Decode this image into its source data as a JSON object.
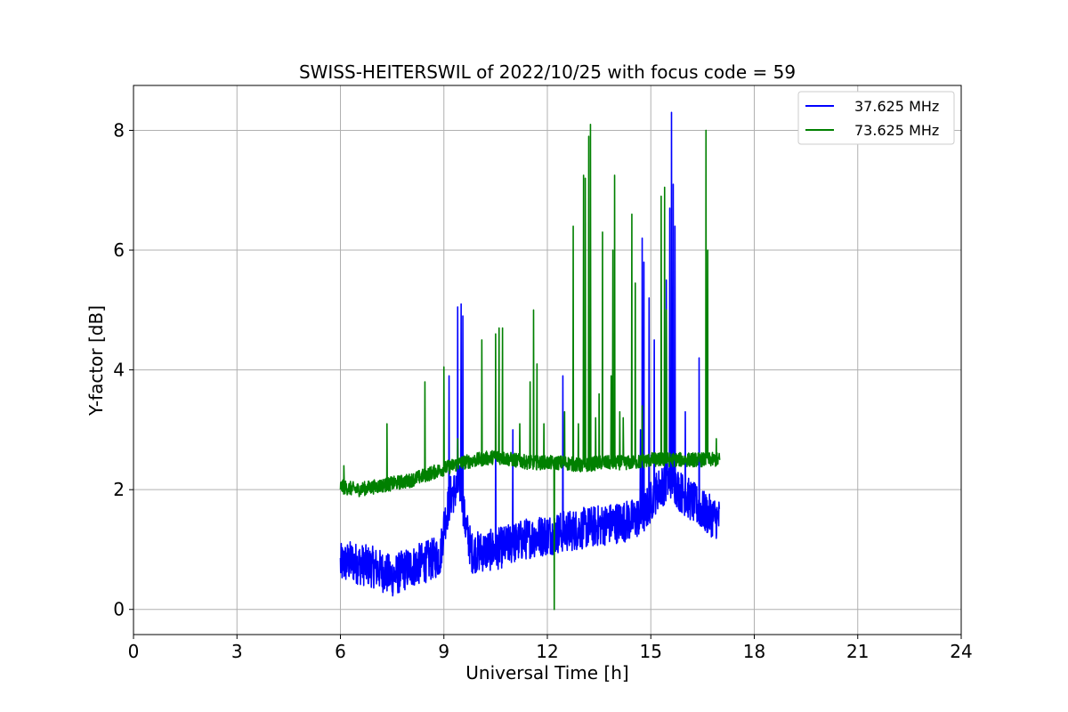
{
  "chart_data": {
    "type": "line",
    "title": "SWISS-HEITERSWIL of 2022/10/25 with focus code = 59",
    "xlabel": "Universal Time [h]",
    "ylabel": "Y-factor [dB]",
    "xlim": [
      0,
      24
    ],
    "ylim": [
      -0.42,
      8.75
    ],
    "xticks": [
      0,
      3,
      6,
      9,
      12,
      15,
      18,
      21,
      24
    ],
    "yticks": [
      0,
      2,
      4,
      6,
      8
    ],
    "grid": true,
    "legend_position": "top-right",
    "series": [
      {
        "name": "37.625 MHz",
        "color": "#0000ff",
        "baseline": [
          [
            6.0,
            0.75
          ],
          [
            6.3,
            0.8
          ],
          [
            6.6,
            0.75
          ],
          [
            7.0,
            0.7
          ],
          [
            7.5,
            0.55
          ],
          [
            8.0,
            0.7
          ],
          [
            8.5,
            0.8
          ],
          [
            8.9,
            0.9
          ],
          [
            9.0,
            1.4
          ],
          [
            9.2,
            1.9
          ],
          [
            9.5,
            2.1
          ],
          [
            9.6,
            1.5
          ],
          [
            9.8,
            0.95
          ],
          [
            10.5,
            1.0
          ],
          [
            11.0,
            1.1
          ],
          [
            11.5,
            1.2
          ],
          [
            12.0,
            1.25
          ],
          [
            12.5,
            1.3
          ],
          [
            13.0,
            1.35
          ],
          [
            13.5,
            1.4
          ],
          [
            14.0,
            1.45
          ],
          [
            14.5,
            1.5
          ],
          [
            14.8,
            1.6
          ],
          [
            15.0,
            1.8
          ],
          [
            15.2,
            2.0
          ],
          [
            15.6,
            2.2
          ],
          [
            15.8,
            2.0
          ],
          [
            16.2,
            1.8
          ],
          [
            16.6,
            1.6
          ],
          [
            17.0,
            1.5
          ]
        ],
        "spread": 0.35,
        "spikes": [
          [
            9.15,
            3.9
          ],
          [
            9.4,
            5.05
          ],
          [
            9.5,
            5.1
          ],
          [
            9.55,
            4.9
          ],
          [
            10.5,
            3.1
          ],
          [
            11.0,
            3.0
          ],
          [
            12.45,
            3.9
          ],
          [
            14.7,
            3.0
          ],
          [
            14.75,
            6.2
          ],
          [
            14.8,
            5.8
          ],
          [
            14.95,
            5.2
          ],
          [
            15.1,
            4.5
          ],
          [
            15.45,
            5.5
          ],
          [
            15.55,
            6.7
          ],
          [
            15.6,
            8.3
          ],
          [
            15.65,
            7.1
          ],
          [
            15.7,
            6.4
          ],
          [
            16.0,
            3.3
          ],
          [
            16.4,
            4.2
          ]
        ]
      },
      {
        "name": "73.625 MHz",
        "color": "#008000",
        "baseline": [
          [
            6.0,
            2.05
          ],
          [
            6.5,
            2.0
          ],
          [
            7.0,
            2.05
          ],
          [
            7.5,
            2.1
          ],
          [
            8.0,
            2.15
          ],
          [
            8.5,
            2.25
          ],
          [
            9.0,
            2.35
          ],
          [
            9.5,
            2.45
          ],
          [
            10.0,
            2.5
          ],
          [
            10.5,
            2.55
          ],
          [
            11.0,
            2.5
          ],
          [
            11.5,
            2.45
          ],
          [
            12.0,
            2.45
          ],
          [
            12.5,
            2.45
          ],
          [
            13.0,
            2.4
          ],
          [
            13.5,
            2.45
          ],
          [
            14.0,
            2.45
          ],
          [
            14.5,
            2.45
          ],
          [
            15.0,
            2.5
          ],
          [
            15.5,
            2.5
          ],
          [
            16.0,
            2.5
          ],
          [
            16.5,
            2.5
          ],
          [
            17.0,
            2.5
          ]
        ],
        "spread": 0.12,
        "spikes": [
          [
            6.1,
            2.4
          ],
          [
            7.35,
            3.1
          ],
          [
            8.45,
            3.8
          ],
          [
            9.0,
            4.05
          ],
          [
            9.4,
            2.85
          ],
          [
            10.1,
            4.5
          ],
          [
            10.5,
            4.6
          ],
          [
            10.6,
            4.7
          ],
          [
            10.7,
            4.7
          ],
          [
            11.2,
            3.1
          ],
          [
            11.5,
            3.8
          ],
          [
            11.6,
            5.0
          ],
          [
            11.7,
            4.1
          ],
          [
            11.9,
            3.1
          ],
          [
            12.2,
            0.0
          ],
          [
            12.5,
            3.3
          ],
          [
            12.75,
            6.4
          ],
          [
            12.9,
            3.1
          ],
          [
            13.05,
            7.25
          ],
          [
            13.1,
            7.2
          ],
          [
            13.2,
            7.9
          ],
          [
            13.25,
            8.1
          ],
          [
            13.4,
            3.2
          ],
          [
            13.5,
            3.6
          ],
          [
            13.6,
            6.3
          ],
          [
            13.85,
            3.9
          ],
          [
            13.9,
            6.0
          ],
          [
            13.95,
            7.25
          ],
          [
            14.1,
            3.3
          ],
          [
            14.2,
            3.2
          ],
          [
            14.45,
            6.6
          ],
          [
            14.55,
            5.45
          ],
          [
            14.75,
            3.4
          ],
          [
            15.3,
            6.9
          ],
          [
            15.4,
            7.05
          ],
          [
            15.45,
            5.0
          ],
          [
            16.6,
            8.0
          ],
          [
            16.65,
            6.0
          ],
          [
            16.9,
            2.85
          ]
        ]
      }
    ]
  }
}
